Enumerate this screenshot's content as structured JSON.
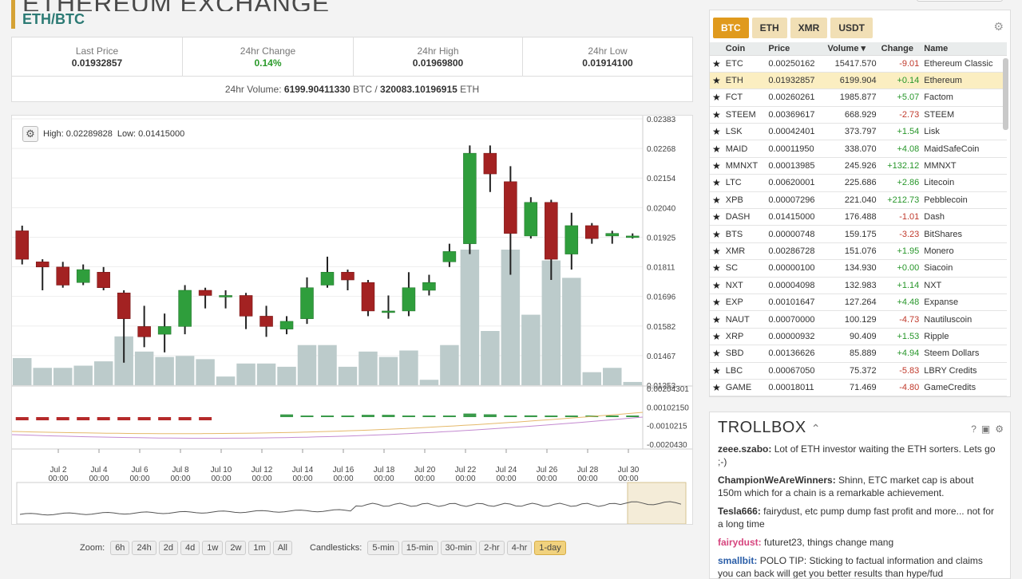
{
  "header": {
    "title": "ETHEREUM EXCHANGE",
    "pair": "ETH/BTC"
  },
  "stats": {
    "items": [
      {
        "label": "Last Price",
        "value": "0.01932857"
      },
      {
        "label": "24hr Change",
        "value": "0.14%"
      },
      {
        "label": "24hr High",
        "value": "0.01969800"
      },
      {
        "label": "24hr Low",
        "value": "0.01914100"
      }
    ],
    "volume_label": "24hr Volume:",
    "volume_btc": "6199.90411330",
    "volume_btc_unit": "BTC /",
    "volume_eth": "320083.10196915",
    "volume_eth_unit": "ETH"
  },
  "chart": {
    "high_label": "High: 0.02289828",
    "low_label": "Low: 0.01415000",
    "gear_icon": "gear-icon"
  },
  "chart_data": {
    "type": "candlestick",
    "price_ticks": [
      "0.02383",
      "0.02268",
      "0.02154",
      "0.02040",
      "0.01925",
      "0.01811",
      "0.01696",
      "0.01582",
      "0.01467",
      "0.01353"
    ],
    "indicator_ticks": [
      "0.00204301",
      "0.00102150",
      "-0.0010215",
      "-0.0020430"
    ],
    "x_ticks": [
      {
        "day": "Jul 2",
        "time": "00:00"
      },
      {
        "day": "Jul 4",
        "time": "00:00"
      },
      {
        "day": "Jul 6",
        "time": "00:00"
      },
      {
        "day": "Jul 8",
        "time": "00:00"
      },
      {
        "day": "Jul 10",
        "time": "00:00"
      },
      {
        "day": "Jul 12",
        "time": "00:00"
      },
      {
        "day": "Jul 14",
        "time": "00:00"
      },
      {
        "day": "Jul 16",
        "time": "00:00"
      },
      {
        "day": "Jul 18",
        "time": "00:00"
      },
      {
        "day": "Jul 20",
        "time": "00:00"
      },
      {
        "day": "Jul 22",
        "time": "00:00"
      },
      {
        "day": "Jul 24",
        "time": "00:00"
      },
      {
        "day": "Jul 26",
        "time": "00:00"
      },
      {
        "day": "Jul 28",
        "time": "00:00"
      },
      {
        "day": "Jul 30",
        "time": "00:00"
      }
    ],
    "candles": [
      {
        "o": 0.0195,
        "h": 0.0197,
        "l": 0.0182,
        "c": 0.0184,
        "v": 0.25
      },
      {
        "o": 0.0183,
        "h": 0.0184,
        "l": 0.0172,
        "c": 0.0181,
        "v": 0.16
      },
      {
        "o": 0.0181,
        "h": 0.0183,
        "l": 0.0173,
        "c": 0.0174,
        "v": 0.16
      },
      {
        "o": 0.0175,
        "h": 0.0182,
        "l": 0.0174,
        "c": 0.018,
        "v": 0.18
      },
      {
        "o": 0.0179,
        "h": 0.0181,
        "l": 0.0172,
        "c": 0.0173,
        "v": 0.22
      },
      {
        "o": 0.0171,
        "h": 0.0172,
        "l": 0.0144,
        "c": 0.0161,
        "v": 0.45
      },
      {
        "o": 0.0158,
        "h": 0.0166,
        "l": 0.015,
        "c": 0.0154,
        "v": 0.31
      },
      {
        "o": 0.0155,
        "h": 0.0163,
        "l": 0.0148,
        "c": 0.0158,
        "v": 0.26
      },
      {
        "o": 0.0158,
        "h": 0.0174,
        "l": 0.0155,
        "c": 0.0172,
        "v": 0.27
      },
      {
        "o": 0.0172,
        "h": 0.0173,
        "l": 0.0165,
        "c": 0.017,
        "v": 0.24
      },
      {
        "o": 0.017,
        "h": 0.0172,
        "l": 0.0165,
        "c": 0.017,
        "v": 0.08
      },
      {
        "o": 0.017,
        "h": 0.0171,
        "l": 0.0157,
        "c": 0.0162,
        "v": 0.2
      },
      {
        "o": 0.0162,
        "h": 0.0166,
        "l": 0.0154,
        "c": 0.0158,
        "v": 0.2
      },
      {
        "o": 0.0157,
        "h": 0.0162,
        "l": 0.0155,
        "c": 0.016,
        "v": 0.17
      },
      {
        "o": 0.0161,
        "h": 0.0177,
        "l": 0.0159,
        "c": 0.0173,
        "v": 0.37
      },
      {
        "o": 0.0174,
        "h": 0.0185,
        "l": 0.0173,
        "c": 0.0179,
        "v": 0.37
      },
      {
        "o": 0.0179,
        "h": 0.018,
        "l": 0.0172,
        "c": 0.0176,
        "v": 0.17
      },
      {
        "o": 0.0175,
        "h": 0.0176,
        "l": 0.0162,
        "c": 0.0164,
        "v": 0.31
      },
      {
        "o": 0.0164,
        "h": 0.017,
        "l": 0.0161,
        "c": 0.0164,
        "v": 0.26
      },
      {
        "o": 0.0164,
        "h": 0.0179,
        "l": 0.0162,
        "c": 0.0173,
        "v": 0.32
      },
      {
        "o": 0.0172,
        "h": 0.0178,
        "l": 0.017,
        "c": 0.0175,
        "v": 0.05
      },
      {
        "o": 0.0183,
        "h": 0.019,
        "l": 0.0181,
        "c": 0.0187,
        "v": 0.37
      },
      {
        "o": 0.019,
        "h": 0.0228,
        "l": 0.0186,
        "c": 0.0225,
        "v": 1.25
      },
      {
        "o": 0.0225,
        "h": 0.0228,
        "l": 0.021,
        "c": 0.0217,
        "v": 0.5
      },
      {
        "o": 0.0214,
        "h": 0.022,
        "l": 0.0178,
        "c": 0.0194,
        "v": 1.25
      },
      {
        "o": 0.0193,
        "h": 0.0208,
        "l": 0.0192,
        "c": 0.0206,
        "v": 0.65
      },
      {
        "o": 0.0206,
        "h": 0.0207,
        "l": 0.0176,
        "c": 0.0184,
        "v": 1.15
      },
      {
        "o": 0.0186,
        "h": 0.0202,
        "l": 0.018,
        "c": 0.0197,
        "v": 0.99
      },
      {
        "o": 0.0197,
        "h": 0.0198,
        "l": 0.019,
        "c": 0.0192,
        "v": 0.12
      },
      {
        "o": 0.0193,
        "h": 0.0195,
        "l": 0.019,
        "c": 0.0194,
        "v": 0.16
      },
      {
        "o": 0.0193,
        "h": 0.0194,
        "l": 0.0192,
        "c": 0.0193,
        "v": 0.03
      }
    ]
  },
  "zoom": {
    "label": "Zoom:",
    "options": [
      "6h",
      "24h",
      "2d",
      "4d",
      "1w",
      "2w",
      "1m",
      "All"
    ]
  },
  "candlesticks": {
    "label": "Candlesticks:",
    "options": [
      "5-min",
      "15-min",
      "30-min",
      "2-hr",
      "4-hr",
      "1-day"
    ],
    "active": "1-day"
  },
  "markets": {
    "tabs": [
      "BTC",
      "ETH",
      "XMR",
      "USDT"
    ],
    "active_tab": "BTC",
    "columns": [
      "Coin",
      "Price",
      "Volume ▾",
      "Change",
      "Name"
    ],
    "rows": [
      {
        "coin": "ETC",
        "price": "0.00250162",
        "volume": "15417.570",
        "change": "-9.01",
        "name": "Ethereum Classic"
      },
      {
        "coin": "ETH",
        "price": "0.01932857",
        "volume": "6199.904",
        "change": "+0.14",
        "name": "Ethereum"
      },
      {
        "coin": "FCT",
        "price": "0.00260261",
        "volume": "1985.877",
        "change": "+5.07",
        "name": "Factom"
      },
      {
        "coin": "STEEM",
        "price": "0.00369617",
        "volume": "668.929",
        "change": "-2.73",
        "name": "STEEM"
      },
      {
        "coin": "LSK",
        "price": "0.00042401",
        "volume": "373.797",
        "change": "+1.54",
        "name": "Lisk"
      },
      {
        "coin": "MAID",
        "price": "0.00011950",
        "volume": "338.070",
        "change": "+4.08",
        "name": "MaidSafeCoin"
      },
      {
        "coin": "MMNXT",
        "price": "0.00013985",
        "volume": "245.926",
        "change": "+132.12",
        "name": "MMNXT"
      },
      {
        "coin": "LTC",
        "price": "0.00620001",
        "volume": "225.686",
        "change": "+2.86",
        "name": "Litecoin"
      },
      {
        "coin": "XPB",
        "price": "0.00007296",
        "volume": "221.040",
        "change": "+212.73",
        "name": "Pebblecoin"
      },
      {
        "coin": "DASH",
        "price": "0.01415000",
        "volume": "176.488",
        "change": "-1.01",
        "name": "Dash"
      },
      {
        "coin": "BTS",
        "price": "0.00000748",
        "volume": "159.175",
        "change": "-3.23",
        "name": "BitShares"
      },
      {
        "coin": "XMR",
        "price": "0.00286728",
        "volume": "151.076",
        "change": "+1.95",
        "name": "Monero"
      },
      {
        "coin": "SC",
        "price": "0.00000100",
        "volume": "134.930",
        "change": "+0.00",
        "name": "Siacoin"
      },
      {
        "coin": "NXT",
        "price": "0.00004098",
        "volume": "132.983",
        "change": "+1.14",
        "name": "NXT"
      },
      {
        "coin": "EXP",
        "price": "0.00101647",
        "volume": "127.264",
        "change": "+4.48",
        "name": "Expanse"
      },
      {
        "coin": "NAUT",
        "price": "0.00070000",
        "volume": "100.129",
        "change": "-4.73",
        "name": "Nautiluscoin"
      },
      {
        "coin": "XRP",
        "price": "0.00000932",
        "volume": "90.409",
        "change": "+1.53",
        "name": "Ripple"
      },
      {
        "coin": "SBD",
        "price": "0.00136626",
        "volume": "85.889",
        "change": "+4.94",
        "name": "Steem Dollars"
      },
      {
        "coin": "LBC",
        "price": "0.00067050",
        "volume": "75.372",
        "change": "-5.83",
        "name": "LBRY Credits"
      },
      {
        "coin": "GAME",
        "price": "0.00018011",
        "volume": "71.469",
        "change": "-4.80",
        "name": "GameCredits"
      }
    ]
  },
  "trollbox": {
    "title": "TROLLBOX",
    "messages": [
      {
        "user": "zeee.szabo:",
        "text": "Lot of ETH investor waiting the ETH sorters. Lets go ;-)",
        "style": ""
      },
      {
        "user": "ChampionWeAreWinners:",
        "text": "Shinn, ETC market cap is about 150m which for a chain is a remarkable achievement.",
        "style": ""
      },
      {
        "user": "Tesla666:",
        "text": "fairydust, etc pump dump fast profit and more... not for a long time",
        "style": ""
      },
      {
        "user": "fairydust:",
        "text": "futuret23, things change mang",
        "style": "pink"
      },
      {
        "user": "smallbit:",
        "text": "POLO TIP: Sticking to factual information and claims you can back will get you better results than hype/fud",
        "style": "blue"
      }
    ]
  }
}
